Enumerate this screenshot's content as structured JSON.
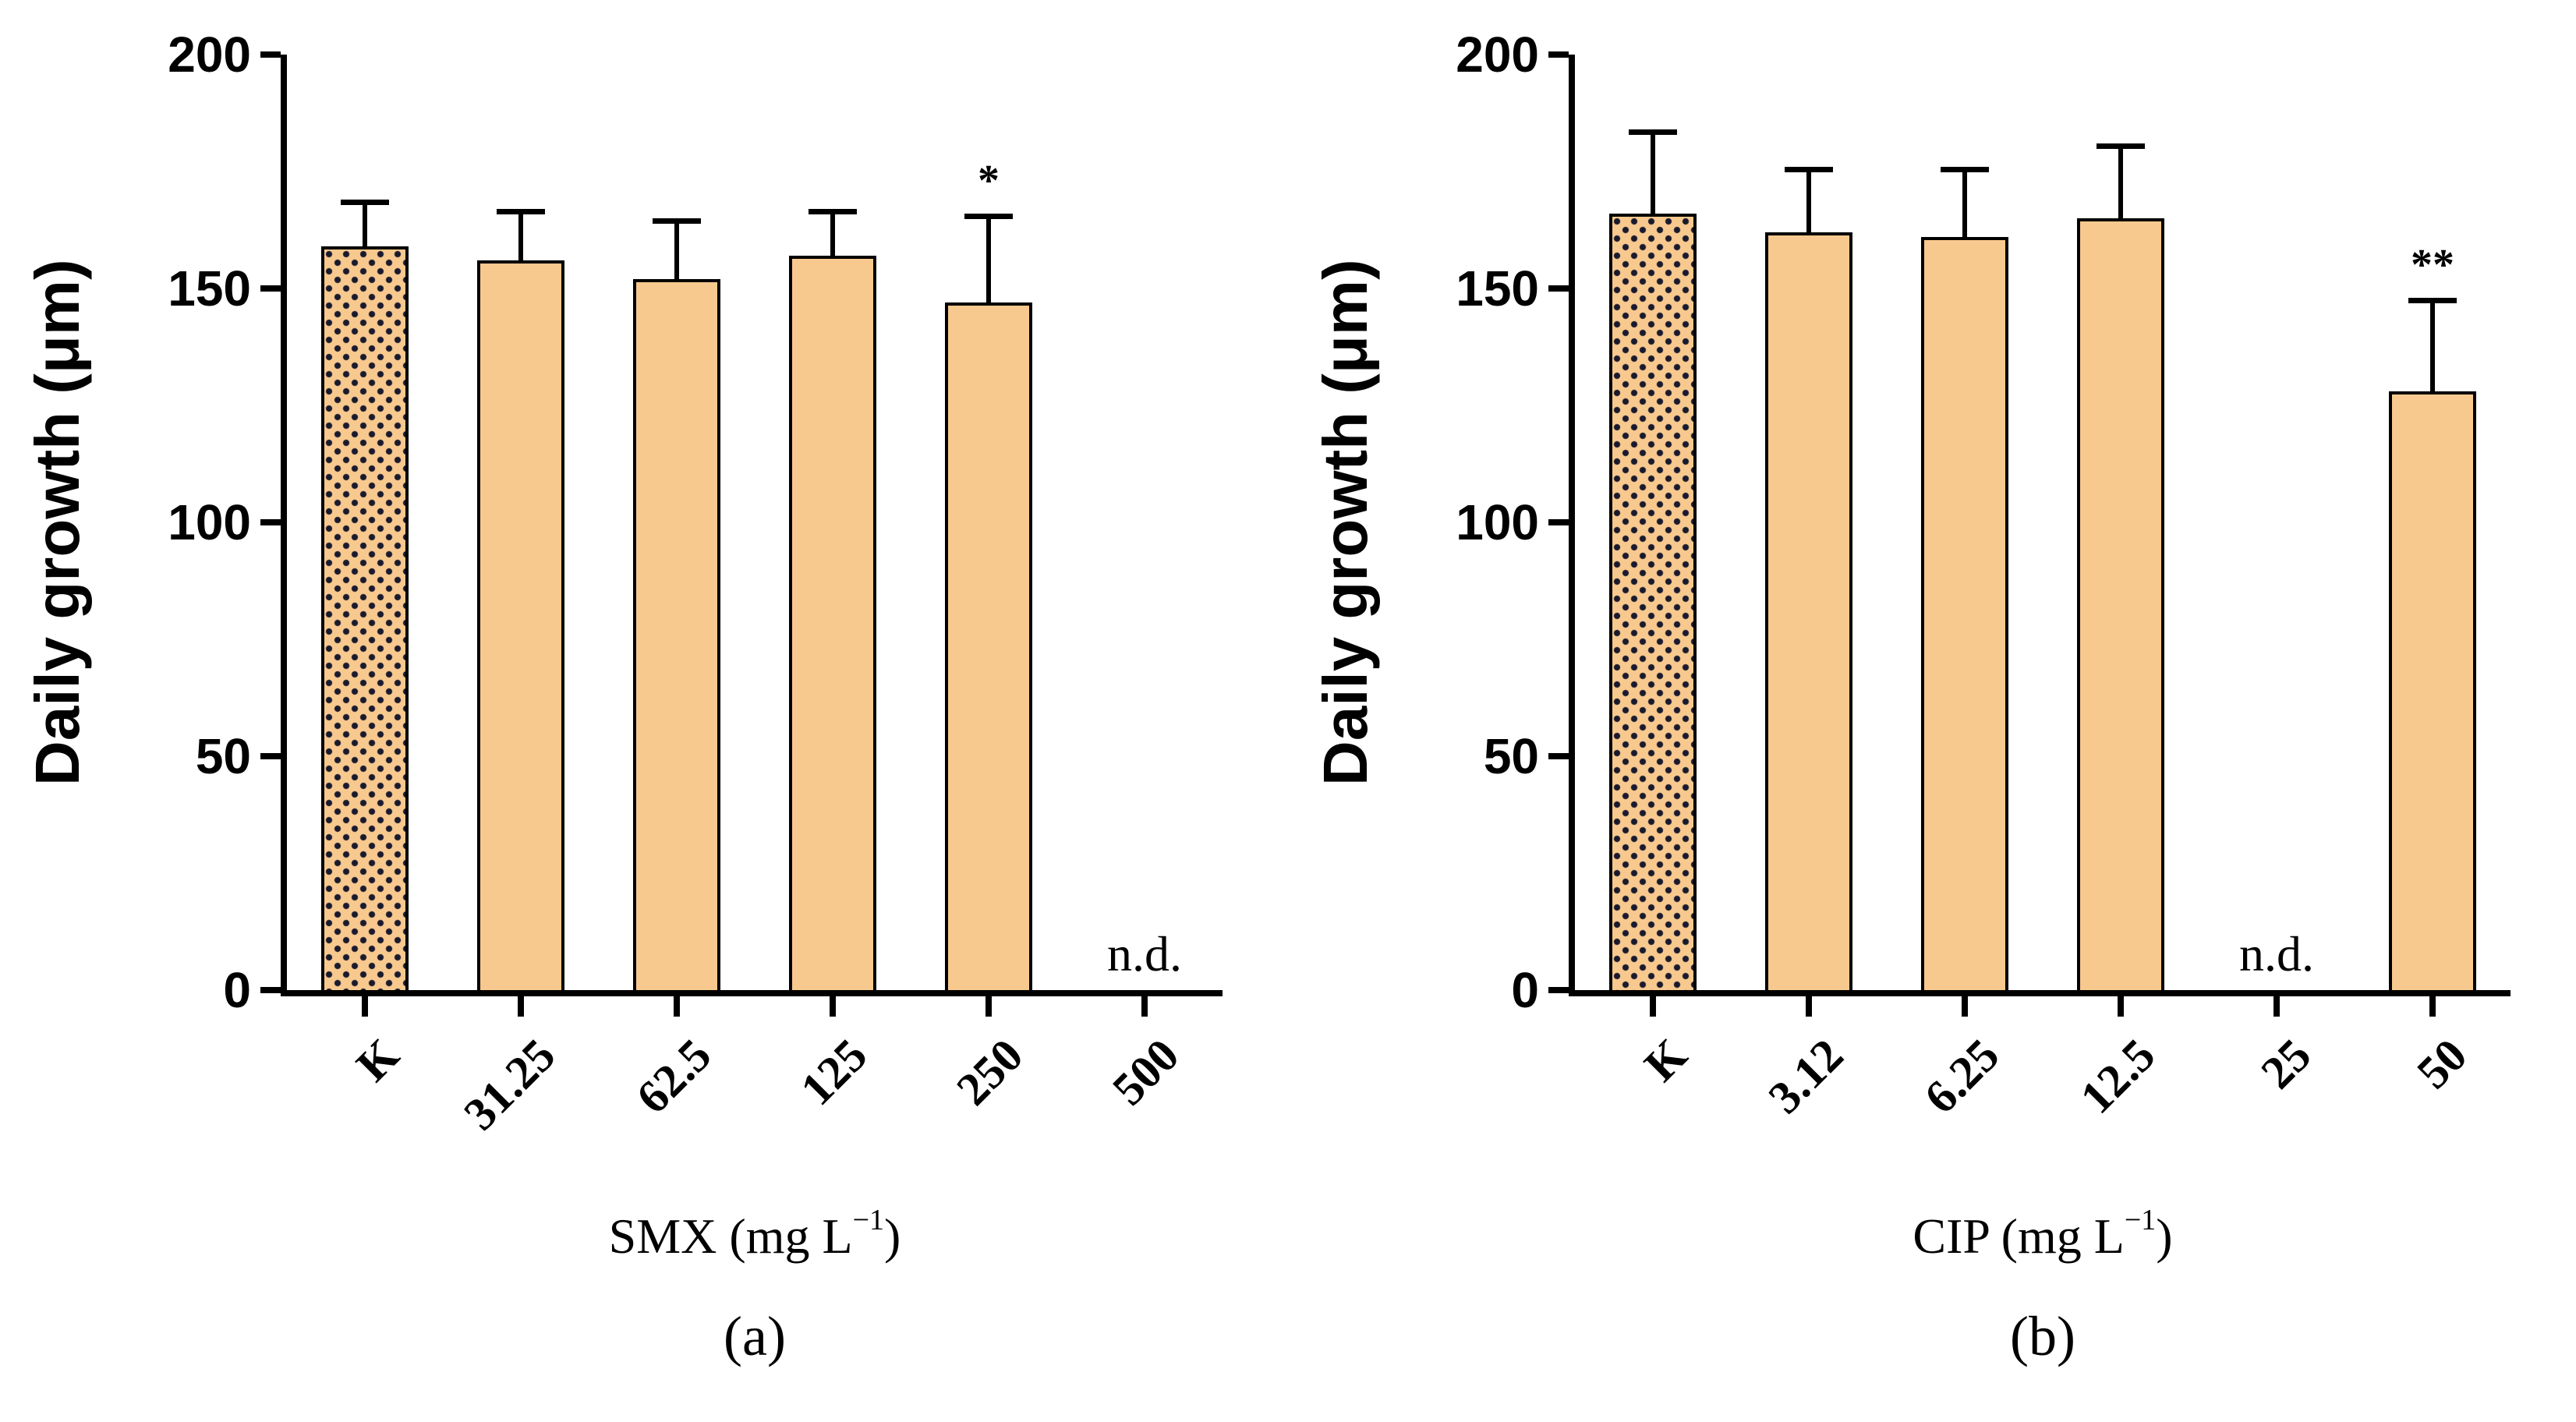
{
  "figure": {
    "background": "#ffffff",
    "axis_color": "#000000",
    "bar_fill": "#f8c98e",
    "error_bar_color": "#000000",
    "panel_count": 2
  },
  "chart_data": [
    {
      "type": "bar",
      "panel_label": "(a)",
      "title": "",
      "xlabel": "SMX (mg L⁻¹)",
      "ylabel": "Daily growth (μm)",
      "ylim": [
        0,
        200
      ],
      "yticks": [
        0,
        50,
        100,
        150,
        200
      ],
      "categories": [
        "K",
        "31.25",
        "62.5",
        "125",
        "250",
        "500"
      ],
      "values": [
        159,
        156,
        152,
        157,
        147,
        null
      ],
      "errors": [
        10,
        11,
        13,
        10,
        19,
        null
      ],
      "bar_styles": [
        "dotted",
        "solid",
        "solid",
        "solid",
        "solid",
        "solid"
      ],
      "annotations": [
        "",
        "",
        "",
        "",
        "*",
        ""
      ],
      "missing_label": "n.d.",
      "grid": false,
      "legend": null
    },
    {
      "type": "bar",
      "panel_label": "(b)",
      "title": "",
      "xlabel": "CIP (mg L⁻¹)",
      "ylabel": "Daily growth (μm)",
      "ylim": [
        0,
        200
      ],
      "yticks": [
        0,
        50,
        100,
        150,
        200
      ],
      "categories": [
        "K",
        "3.12",
        "6.25",
        "12.5",
        "25",
        "50"
      ],
      "values": [
        166,
        162,
        161,
        165,
        null,
        128
      ],
      "errors": [
        18,
        14,
        15,
        16,
        null,
        20
      ],
      "bar_styles": [
        "dotted",
        "solid",
        "solid",
        "solid",
        "solid",
        "solid"
      ],
      "annotations": [
        "",
        "",
        "",
        "",
        "",
        "**"
      ],
      "missing_label": "n.d.",
      "grid": false,
      "legend": null
    }
  ]
}
